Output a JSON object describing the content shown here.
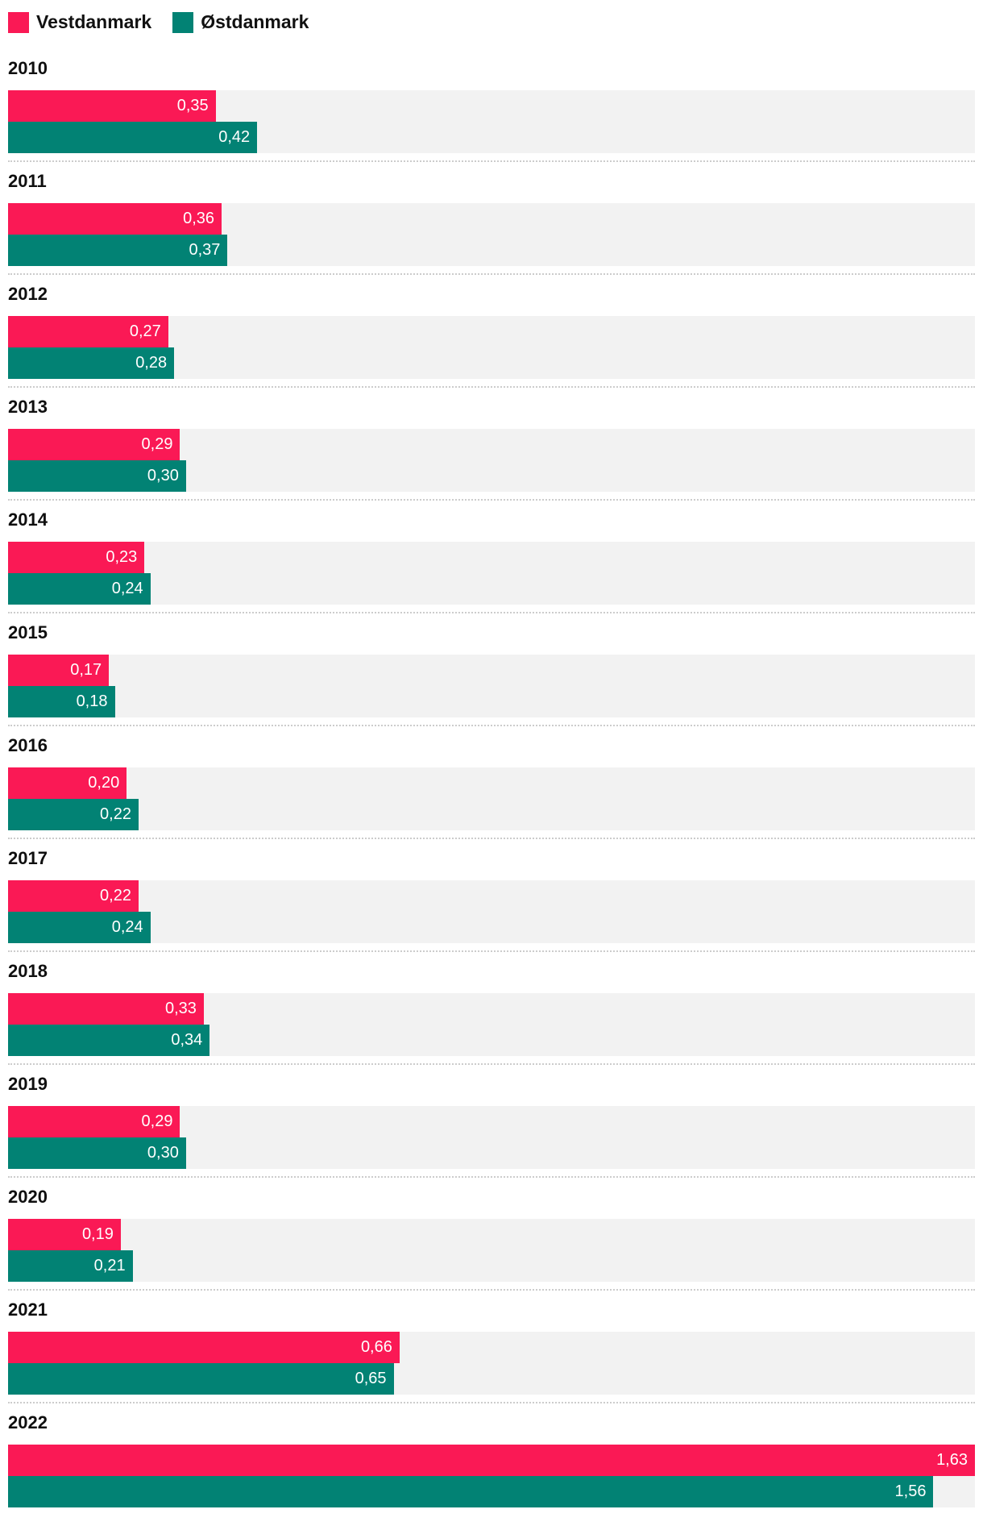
{
  "legend": {
    "items": [
      {
        "label": "Vestdanmark",
        "color": "#fa1955"
      },
      {
        "label": "Østdanmark",
        "color": "#028274"
      }
    ]
  },
  "colors": {
    "vestdanmark": "#fa1955",
    "ostdanmark": "#028274",
    "track_background": "#f2f2f2",
    "separator": "#cccccc",
    "value_text": "#ffffff",
    "label_text": "#111111"
  },
  "chart_data": {
    "type": "bar",
    "orientation": "horizontal",
    "grid": false,
    "legend_position": "top",
    "xlim": [
      0,
      1.63
    ],
    "categories": [
      "2010",
      "2011",
      "2012",
      "2013",
      "2014",
      "2015",
      "2016",
      "2017",
      "2018",
      "2019",
      "2020",
      "2021",
      "2022"
    ],
    "series": [
      {
        "name": "Vestdanmark",
        "color": "#fa1955",
        "values": [
          0.35,
          0.36,
          0.27,
          0.29,
          0.23,
          0.17,
          0.2,
          0.22,
          0.33,
          0.29,
          0.19,
          0.66,
          1.63
        ]
      },
      {
        "name": "Østdanmark",
        "color": "#028274",
        "values": [
          0.42,
          0.37,
          0.28,
          0.3,
          0.24,
          0.18,
          0.22,
          0.24,
          0.34,
          0.3,
          0.21,
          0.65,
          1.56
        ]
      }
    ],
    "groups": [
      {
        "year": "2010",
        "bars": [
          {
            "series": "Vestdanmark",
            "value": 0.35,
            "label": "0,35"
          },
          {
            "series": "Østdanmark",
            "value": 0.42,
            "label": "0,42"
          }
        ]
      },
      {
        "year": "2011",
        "bars": [
          {
            "series": "Vestdanmark",
            "value": 0.36,
            "label": "0,36"
          },
          {
            "series": "Østdanmark",
            "value": 0.37,
            "label": "0,37"
          }
        ]
      },
      {
        "year": "2012",
        "bars": [
          {
            "series": "Vestdanmark",
            "value": 0.27,
            "label": "0,27"
          },
          {
            "series": "Østdanmark",
            "value": 0.28,
            "label": "0,28"
          }
        ]
      },
      {
        "year": "2013",
        "bars": [
          {
            "series": "Vestdanmark",
            "value": 0.29,
            "label": "0,29"
          },
          {
            "series": "Østdanmark",
            "value": 0.3,
            "label": "0,30"
          }
        ]
      },
      {
        "year": "2014",
        "bars": [
          {
            "series": "Vestdanmark",
            "value": 0.23,
            "label": "0,23"
          },
          {
            "series": "Østdanmark",
            "value": 0.24,
            "label": "0,24"
          }
        ]
      },
      {
        "year": "2015",
        "bars": [
          {
            "series": "Vestdanmark",
            "value": 0.17,
            "label": "0,17"
          },
          {
            "series": "Østdanmark",
            "value": 0.18,
            "label": "0,18"
          }
        ]
      },
      {
        "year": "2016",
        "bars": [
          {
            "series": "Vestdanmark",
            "value": 0.2,
            "label": "0,20"
          },
          {
            "series": "Østdanmark",
            "value": 0.22,
            "label": "0,22"
          }
        ]
      },
      {
        "year": "2017",
        "bars": [
          {
            "series": "Vestdanmark",
            "value": 0.22,
            "label": "0,22"
          },
          {
            "series": "Østdanmark",
            "value": 0.24,
            "label": "0,24"
          }
        ]
      },
      {
        "year": "2018",
        "bars": [
          {
            "series": "Vestdanmark",
            "value": 0.33,
            "label": "0,33"
          },
          {
            "series": "Østdanmark",
            "value": 0.34,
            "label": "0,34"
          }
        ]
      },
      {
        "year": "2019",
        "bars": [
          {
            "series": "Vestdanmark",
            "value": 0.29,
            "label": "0,29"
          },
          {
            "series": "Østdanmark",
            "value": 0.3,
            "label": "0,30"
          }
        ]
      },
      {
        "year": "2020",
        "bars": [
          {
            "series": "Vestdanmark",
            "value": 0.19,
            "label": "0,19"
          },
          {
            "series": "Østdanmark",
            "value": 0.21,
            "label": "0,21"
          }
        ]
      },
      {
        "year": "2021",
        "bars": [
          {
            "series": "Vestdanmark",
            "value": 0.66,
            "label": "0,66"
          },
          {
            "series": "Østdanmark",
            "value": 0.65,
            "label": "0,65"
          }
        ]
      },
      {
        "year": "2022",
        "bars": [
          {
            "series": "Vestdanmark",
            "value": 1.63,
            "label": "1,63"
          },
          {
            "series": "Østdanmark",
            "value": 1.56,
            "label": "1,56"
          }
        ]
      }
    ]
  }
}
